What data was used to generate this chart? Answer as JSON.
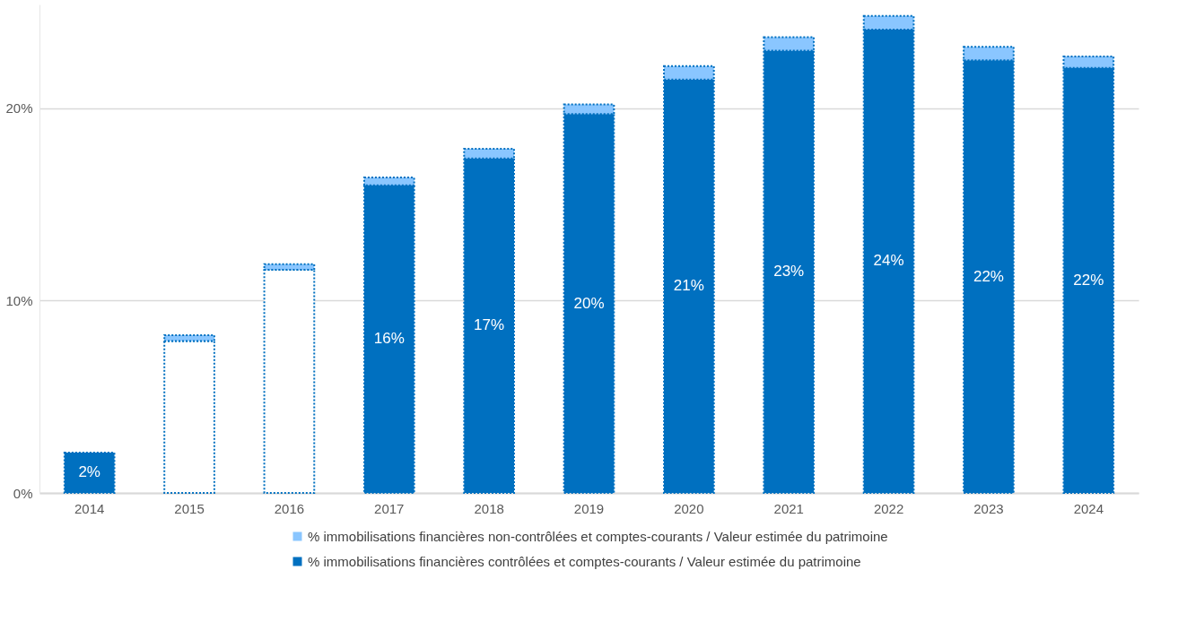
{
  "chart_data": {
    "type": "bar",
    "stacked": true,
    "categories": [
      "2014",
      "2015",
      "2016",
      "2017",
      "2018",
      "2019",
      "2020",
      "2021",
      "2022",
      "2023",
      "2024"
    ],
    "series": [
      {
        "name": "% immobilisations financières contrôlées et comptes-courants / Valeur estimée du patrimoine",
        "color": "#0070c0",
        "colors": [
          "#0070c0",
          "#ffffff",
          "#ffffff",
          "#0070c0",
          "#0070c0",
          "#0070c0",
          "#0070c0",
          "#0070c0",
          "#0070c0",
          "#0070c0",
          "#0070c0"
        ],
        "values": [
          2.1,
          7.9,
          11.6,
          16.0,
          17.4,
          19.7,
          21.5,
          23.0,
          24.1,
          22.5,
          22.1
        ],
        "value_labels": [
          "2%",
          null,
          null,
          "16%",
          "17%",
          "20%",
          "21%",
          "23%",
          "24%",
          "22%",
          "22%"
        ]
      },
      {
        "name": "% immobilisations financières non-contrôlées et comptes-courants / Valeur estimée du patrimoine",
        "color": "#8ac6ff",
        "values": [
          null,
          0.3,
          0.3,
          0.4,
          0.5,
          0.5,
          0.7,
          0.7,
          0.7,
          0.7,
          0.6
        ]
      }
    ],
    "ylim": [
      0,
      25.4
    ],
    "yticks": [
      {
        "value": 0,
        "label": "0%"
      },
      {
        "value": 10,
        "label": "10%"
      },
      {
        "value": 20,
        "label": "20%"
      }
    ],
    "grid": "y",
    "legend": "bottom"
  }
}
